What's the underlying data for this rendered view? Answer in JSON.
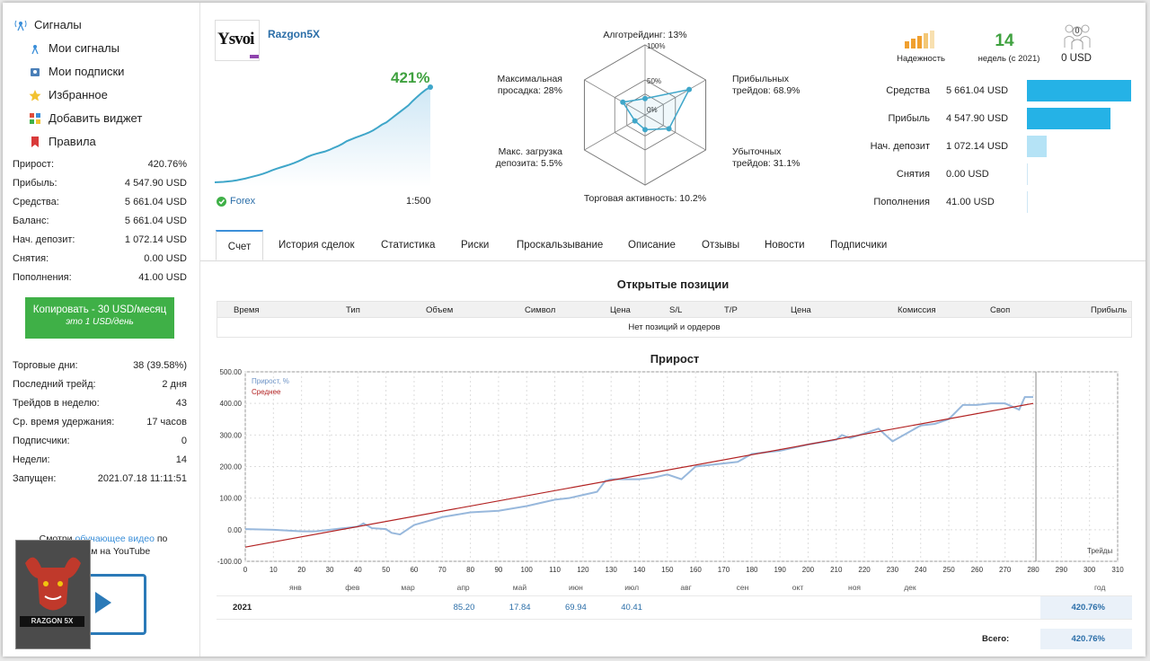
{
  "sidebar": {
    "title": "Сигналы",
    "nav": [
      {
        "label": "Мои сигналы",
        "icon": "signal-icon"
      },
      {
        "label": "Мои подписки",
        "icon": "subscription-icon"
      },
      {
        "label": "Избранное",
        "icon": "star-icon"
      },
      {
        "label": "Добавить виджет",
        "icon": "widget-icon"
      },
      {
        "label": "Правила",
        "icon": "bookmark-icon"
      }
    ],
    "stats": [
      {
        "label": "Прирост:",
        "value": "420.76%"
      },
      {
        "label": "Прибыль:",
        "value": "4 547.90 USD"
      },
      {
        "label": "Средства:",
        "value": "5 661.04 USD"
      },
      {
        "label": "Баланс:",
        "value": "5 661.04 USD"
      },
      {
        "label": "Нач. депозит:",
        "value": "1 072.14 USD"
      },
      {
        "label": "Снятия:",
        "value": "0.00 USD"
      },
      {
        "label": "Пополнения:",
        "value": "41.00 USD"
      }
    ],
    "copy_button": {
      "line1": "Копировать - 30 USD/месяц",
      "line2": "это 1 USD/день"
    },
    "stats2": [
      {
        "label": "Торговые дни:",
        "value": "38 (39.58%)"
      },
      {
        "label": "Последний трейд:",
        "value": "2 дня"
      },
      {
        "label": "Трейдов в неделю:",
        "value": "43"
      },
      {
        "label": "Ср. время удержания:",
        "value": "17 часов"
      },
      {
        "label": "Подписчики:",
        "value": "0"
      },
      {
        "label": "Недели:",
        "value": "14"
      },
      {
        "label": "Запущен:",
        "value": "2021.07.18 11:11:51"
      }
    ],
    "video": {
      "prefix": "Смотри",
      "link": "обучающее видео",
      "mid": "по",
      "line2": "сигналам на YouTube"
    },
    "promo_logo": "RAZGON 5X"
  },
  "header": {
    "avatar_text": "Ysvoi",
    "signal_name": "Razgon5X",
    "growth": "421%",
    "market": "Forex",
    "leverage": "1:500",
    "growth_series": [
      0,
      1,
      2,
      4,
      6,
      9,
      13,
      17,
      22,
      27,
      32,
      38,
      45,
      53,
      60,
      66,
      72,
      78,
      85,
      93,
      102,
      112,
      120,
      126,
      131,
      136,
      143,
      152,
      160,
      170,
      182,
      190,
      198,
      205,
      212,
      220,
      230,
      242,
      255,
      265,
      280,
      295,
      310,
      325,
      340,
      360,
      378,
      395,
      410,
      421
    ]
  },
  "radar": {
    "axes": [
      {
        "label": "Алготрейдинг: 13%",
        "value": 13
      },
      {
        "label": "Прибыльных трейдов: 68.9%",
        "line1": "Прибыльных",
        "line2": "трейдов: 68.9%",
        "value": 68.9
      },
      {
        "label": "Убыточных трейдов: 31.1%",
        "line1": "Убыточных",
        "line2": "трейдов: 31.1%",
        "value": 31.1
      },
      {
        "label": "Торговая активность: 10.2%",
        "value": 10.2
      },
      {
        "label": "Макс. загрузка депозита: 5.5%",
        "line1": "Макс. загрузка",
        "line2": "депозита: 5.5%",
        "value": 5.5
      },
      {
        "label": "Максимальная просадка: 28%",
        "line1": "Максимальная",
        "line2": "просадка: 28%",
        "value": 28
      }
    ],
    "ticks": [
      "100%",
      "50%",
      "0%"
    ]
  },
  "summary": {
    "reliability_label": "Надежность",
    "weeks_value": "14",
    "weeks_label": "недель (с 2021)",
    "subscribers_count": "0",
    "subscribers_usd": "0 USD",
    "bars": [
      {
        "label": "Средства",
        "value": "5 661.04 USD",
        "amount": 5661.04
      },
      {
        "label": "Прибыль",
        "value": "4 547.90 USD",
        "amount": 4547.9
      },
      {
        "label": "Нач. депозит",
        "value": "1 072.14 USD",
        "amount": 1072.14
      },
      {
        "label": "Снятия",
        "value": "0.00 USD",
        "amount": 0
      },
      {
        "label": "Пополнения",
        "value": "41.00 USD",
        "amount": 41
      }
    ]
  },
  "tabs": [
    "Счет",
    "История сделок",
    "Статистика",
    "Риски",
    "Проскальзывание",
    "Описание",
    "Отзывы",
    "Новости",
    "Подписчики"
  ],
  "positions": {
    "title": "Открытые позиции",
    "columns": [
      "Время",
      "Тип",
      "Объем",
      "Символ",
      "Цена",
      "S/L",
      "T/P",
      "Цена",
      "Комиссия",
      "Своп",
      "Прибыль"
    ],
    "empty_text": "Нет позиций и ордеров"
  },
  "chart_data": {
    "type": "line",
    "title": "Прирост",
    "legend": [
      "Прирост, %",
      "Среднее"
    ],
    "xlabel": "Трейды",
    "xlim": [
      0,
      310
    ],
    "ylim": [
      -100,
      500
    ],
    "x_ticks": [
      0,
      10,
      20,
      30,
      40,
      50,
      60,
      70,
      80,
      90,
      100,
      110,
      120,
      130,
      140,
      150,
      160,
      170,
      180,
      190,
      200,
      210,
      220,
      230,
      240,
      250,
      260,
      270,
      280,
      290,
      300,
      310
    ],
    "y_ticks": [
      "500.00",
      "400.00",
      "300.00",
      "200.00",
      "100.00",
      "0.00",
      "-100.00"
    ],
    "series": [
      {
        "name": "Прирост, %",
        "x": [
          0,
          10,
          20,
          25,
          30,
          35,
          40,
          42,
          45,
          50,
          52,
          55,
          60,
          70,
          80,
          90,
          100,
          110,
          115,
          120,
          125,
          128,
          130,
          140,
          145,
          150,
          155,
          160,
          170,
          175,
          180,
          185,
          190,
          200,
          210,
          212,
          215,
          220,
          225,
          230,
          240,
          245,
          250,
          255,
          260,
          265,
          270,
          275,
          277,
          280
        ],
        "values": [
          2,
          0,
          -5,
          -5,
          0,
          5,
          10,
          20,
          5,
          2,
          -10,
          -15,
          15,
          40,
          55,
          60,
          75,
          95,
          100,
          110,
          120,
          155,
          160,
          160,
          165,
          175,
          160,
          200,
          210,
          215,
          240,
          245,
          250,
          270,
          285,
          300,
          290,
          305,
          320,
          280,
          330,
          335,
          350,
          395,
          395,
          400,
          400,
          380,
          420,
          420
        ]
      },
      {
        "name": "Среднее",
        "x": [
          0,
          280
        ],
        "values": [
          -55,
          400
        ]
      }
    ],
    "months": [
      "янв",
      "фев",
      "мар",
      "апр",
      "май",
      "июн",
      "июл",
      "авг",
      "сен",
      "окт",
      "ноя",
      "дек",
      "год"
    ],
    "year_row": {
      "year": "2021",
      "values": {
        "апр": "85.20",
        "май": "17.84",
        "июн": "69.94",
        "июл": "40.41"
      },
      "total": "420.76%"
    },
    "total_label": "Всего:",
    "total_value": "420.76%"
  },
  "colors": {
    "accent": "#3b8fd9",
    "green": "#3fb047",
    "bar": "#25b2e6",
    "line": "#98b8dc",
    "avg": "#b22222"
  }
}
